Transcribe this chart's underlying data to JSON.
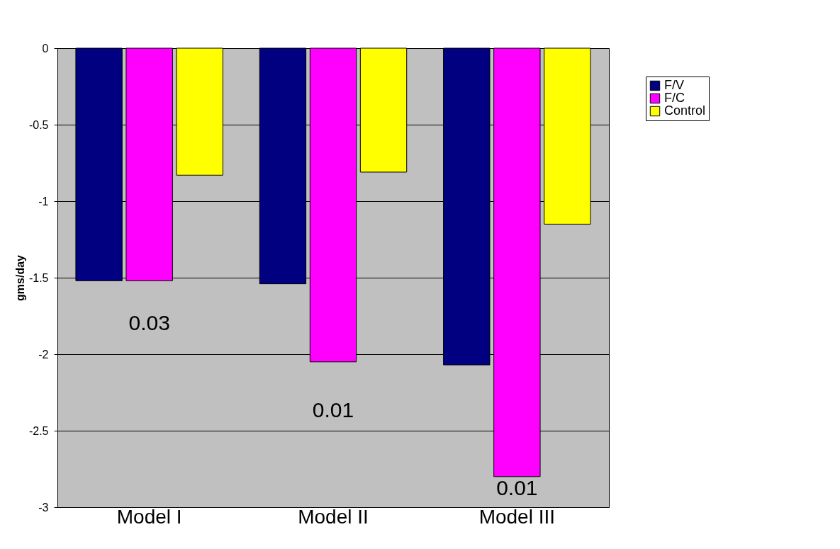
{
  "chart_data": {
    "type": "bar",
    "ylabel": "gms/day",
    "categories": [
      "Model I",
      "Model II",
      "Model III"
    ],
    "series": [
      {
        "name": "F/V",
        "color": "#000080",
        "values": [
          -1.52,
          -1.54,
          -2.07
        ]
      },
      {
        "name": "F/C",
        "color": "#ff00ff",
        "values": [
          -1.52,
          -2.05,
          -2.8
        ]
      },
      {
        "name": "Control",
        "color": "#ffff00",
        "values": [
          -0.83,
          -0.81,
          -1.15
        ]
      }
    ],
    "ylim": [
      -3,
      0
    ],
    "yticks": [
      -3,
      -2.5,
      -2,
      -1.5,
      -1,
      -0.5,
      0
    ],
    "grid": "y",
    "legend": "top right",
    "annotations": [
      "0.03",
      "0.01",
      "0.01"
    ]
  }
}
